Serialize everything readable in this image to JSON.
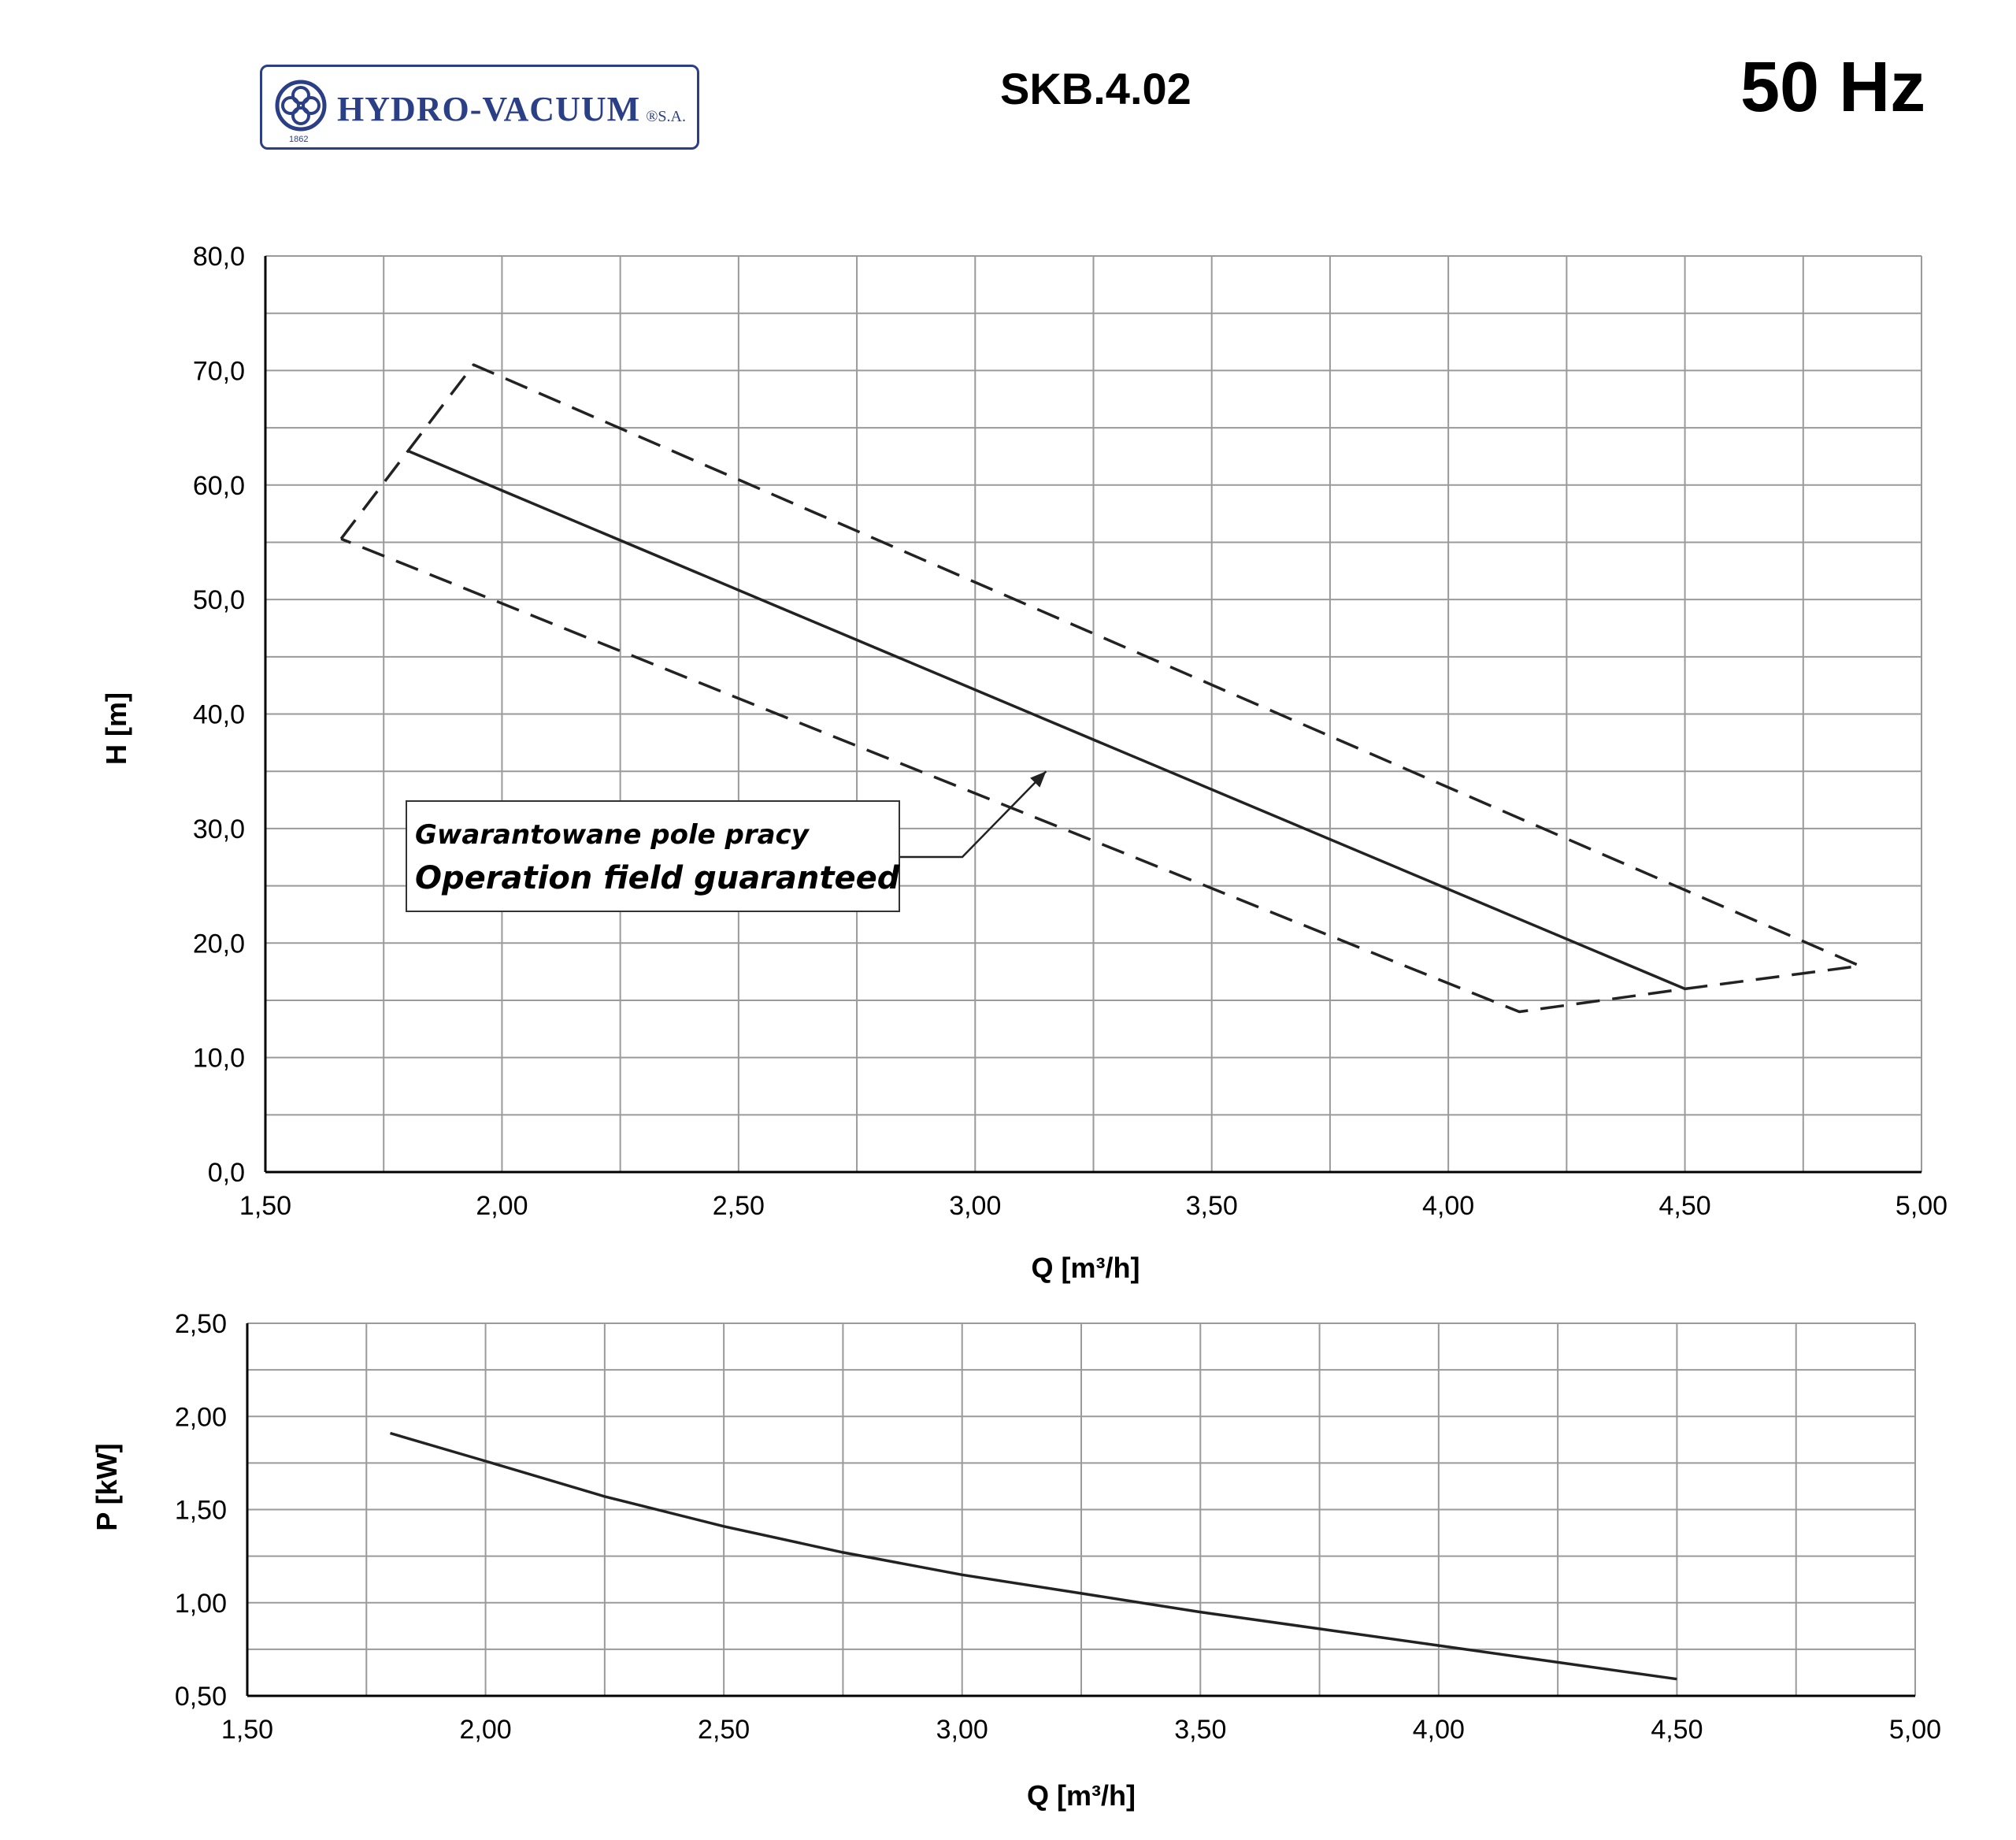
{
  "header": {
    "logo_text": "HYDRO-VACUUM",
    "logo_suffix": "®S.A.",
    "logo_year": "1862",
    "model": "SKB.4.02",
    "frequency": "50 Hz"
  },
  "colors": {
    "logo": "#2b3f86",
    "line": "#222222",
    "grid": "#9a9a9a"
  },
  "chart_data": [
    {
      "type": "line",
      "xlabel": "Q  [m³/h]",
      "ylabel": "H  [m]",
      "xlim": [
        1.5,
        5.0
      ],
      "ylim": [
        0,
        80
      ],
      "x_ticks": [
        1.5,
        1.75,
        2.0,
        2.25,
        2.5,
        2.75,
        3.0,
        3.25,
        3.5,
        3.75,
        4.0,
        4.25,
        4.5,
        4.75,
        5.0
      ],
      "y_ticks": [
        0,
        5,
        10,
        15,
        20,
        25,
        30,
        35,
        40,
        45,
        50,
        55,
        60,
        65,
        70,
        75,
        80
      ],
      "x_tick_labels": [
        "1,50",
        "2,00",
        "2,50",
        "3,00",
        "3,50",
        "4,00",
        "4,50",
        "5,00"
      ],
      "y_tick_labels": [
        "0,0",
        "10,0",
        "20,0",
        "30,0",
        "40,0",
        "50,0",
        "60,0",
        "70,0",
        "80,0"
      ],
      "grid": true,
      "series": [
        {
          "style": "solid",
          "x": [
            1.8,
            4.5
          ],
          "y": [
            63.0,
            16.0
          ]
        },
        {
          "style": "dashed",
          "x": [
            1.66,
            1.94,
            4.87,
            4.5,
            4.15,
            1.66
          ],
          "y": [
            55.3,
            70.5,
            18.0,
            16.0,
            14.0,
            55.3
          ]
        }
      ],
      "annotation": {
        "line1": "Gwarantowane pole pracy",
        "line2": "Operation field guaranteed",
        "arrow_target": {
          "x": 3.15,
          "y": 35.0
        }
      }
    },
    {
      "type": "line",
      "xlabel": "Q [m³/h]",
      "ylabel": "P [kW]",
      "xlim": [
        1.5,
        5.0
      ],
      "ylim": [
        0.5,
        2.5
      ],
      "x_ticks": [
        1.5,
        1.75,
        2.0,
        2.25,
        2.5,
        2.75,
        3.0,
        3.25,
        3.5,
        3.75,
        4.0,
        4.25,
        4.5,
        4.75,
        5.0
      ],
      "y_ticks": [
        0.5,
        0.75,
        1.0,
        1.25,
        1.5,
        1.75,
        2.0,
        2.25,
        2.5
      ],
      "x_tick_labels": [
        "1,50",
        "2,00",
        "2,50",
        "3,00",
        "3,50",
        "4,00",
        "4,50",
        "5,00"
      ],
      "y_tick_labels": [
        "0,50",
        "1,00",
        "1,50",
        "2,00",
        "2,50"
      ],
      "grid": true,
      "series": [
        {
          "style": "solid",
          "x": [
            1.8,
            2.0,
            2.25,
            2.5,
            2.75,
            3.0,
            3.25,
            3.5,
            3.75,
            4.0,
            4.25,
            4.5
          ],
          "y": [
            1.91,
            1.76,
            1.57,
            1.41,
            1.27,
            1.15,
            1.05,
            0.95,
            0.86,
            0.77,
            0.68,
            0.59
          ]
        }
      ]
    }
  ]
}
